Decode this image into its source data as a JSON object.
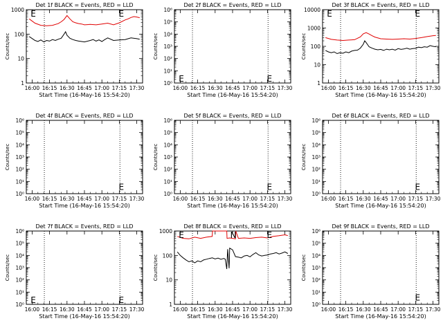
{
  "background": "#ffffff",
  "colors": {
    "events": "#000000",
    "lld": "#e00000",
    "axes": "#000000"
  },
  "shared": {
    "x_ticks": [
      "16:00",
      "16:15",
      "16:30",
      "16:45",
      "17:00",
      "17:15",
      "17:30"
    ],
    "x_label": "Start Time (16-May-16 15:54:20)",
    "y_label": "Counts/sec",
    "marker": "E"
  },
  "chart_data": [
    {
      "type": "line",
      "title": "Det 1f BLACK = Events, RED = LLD",
      "scale": "log",
      "ylim": [
        1,
        1000
      ],
      "y_ticks": [
        "1",
        "10",
        "100",
        "1000"
      ],
      "x_ticks": [
        "16:00",
        "16:15",
        "16:30",
        "16:45",
        "17:00",
        "17:15",
        "17:30"
      ],
      "xlim_minutes": [
        -2,
        38
      ],
      "xlabel": "Start Time (16-May-16 15:54:20)",
      "ylabel": "Counts/sec",
      "vlines_minutes": [
        4.2,
        30.2
      ],
      "markers": [
        {
          "text": "E",
          "x": -0.5,
          "y": 900
        },
        {
          "text": "E",
          "x": 29.8,
          "y": 900
        }
      ],
      "series": [
        {
          "name": "LLD",
          "color": "#e00000",
          "x": [
            -1,
            1,
            3,
            5,
            7,
            9,
            10,
            11,
            12,
            13,
            14,
            15,
            16,
            17,
            18,
            20,
            22,
            24,
            26,
            28,
            30,
            32,
            33,
            34,
            35,
            36,
            37
          ],
          "y": [
            420,
            280,
            230,
            220,
            230,
            270,
            320,
            400,
            580,
            420,
            320,
            290,
            270,
            260,
            240,
            250,
            240,
            260,
            280,
            240,
            290,
            380,
            420,
            480,
            520,
            500,
            470
          ]
        },
        {
          "name": "Events",
          "color": "#000000",
          "x": [
            -1,
            1,
            2,
            3,
            4,
            5,
            6,
            7,
            8,
            9,
            10,
            11,
            11.5,
            12,
            13,
            14,
            15,
            16,
            17,
            18,
            20,
            21,
            22,
            23,
            24,
            25,
            26,
            28,
            30,
            32,
            34,
            36,
            37
          ],
          "y": [
            80,
            55,
            50,
            58,
            48,
            55,
            52,
            60,
            55,
            62,
            68,
            100,
            125,
            90,
            68,
            60,
            55,
            52,
            50,
            48,
            55,
            60,
            52,
            58,
            50,
            60,
            70,
            55,
            58,
            60,
            70,
            65,
            62
          ]
        }
      ]
    },
    {
      "type": "line",
      "title": "Det 2f BLACK = Events, RED = LLD",
      "scale": "log",
      "ylim": [
        1,
        1000000
      ],
      "y_ticks": [
        "10⁰",
        "10¹",
        "10²",
        "10³",
        "10⁴",
        "10⁵",
        "10⁶"
      ],
      "x_ticks": [
        "16:00",
        "16:15",
        "16:30",
        "16:45",
        "17:00",
        "17:15",
        "17:30"
      ],
      "xlim_minutes": [
        -2,
        38
      ],
      "xlabel": "Start Time (16-May-16 15:54:20)",
      "ylabel": "Counts/sec",
      "vlines_minutes": [
        4.2,
        30.2
      ],
      "markers": [
        {
          "text": "E",
          "x": -0.5,
          "y": 1.6
        },
        {
          "text": "E",
          "x": 29.8,
          "y": 1.6
        }
      ],
      "series": []
    },
    {
      "type": "line",
      "title": "Det 3f BLACK = Events, RED = LLD",
      "scale": "log",
      "ylim": [
        1,
        10000
      ],
      "y_ticks": [
        "1",
        "10",
        "100",
        "1000",
        "10000"
      ],
      "x_ticks": [
        "16:00",
        "16:15",
        "16:30",
        "16:45",
        "17:00",
        "17:15",
        "17:30"
      ],
      "xlim_minutes": [
        -2,
        38
      ],
      "xlabel": "Start Time (16-May-16 15:54:20)",
      "ylabel": "Counts/sec",
      "vlines_minutes": [
        4.2,
        30.2
      ],
      "markers": [
        {
          "text": "E",
          "x": -0.5,
          "y": 9000
        },
        {
          "text": "E",
          "x": 29.8,
          "y": 9000
        }
      ],
      "series": [
        {
          "name": "LLD",
          "color": "#e00000",
          "x": [
            -1,
            1,
            3,
            5,
            7,
            9,
            11,
            12,
            13,
            14,
            15,
            16,
            18,
            20,
            22,
            24,
            26,
            28,
            30,
            32,
            34,
            36,
            37
          ],
          "y": [
            300,
            240,
            220,
            210,
            220,
            230,
            330,
            480,
            560,
            470,
            380,
            320,
            260,
            250,
            240,
            250,
            260,
            250,
            270,
            300,
            340,
            380,
            390
          ]
        },
        {
          "name": "Events",
          "color": "#000000",
          "x": [
            -1,
            0,
            1,
            2,
            3,
            4,
            5,
            6,
            7,
            8,
            9,
            10,
            11,
            12,
            12.5,
            13,
            14,
            15,
            16,
            17,
            18,
            19,
            20,
            21,
            22,
            23,
            24,
            25,
            26,
            27,
            28,
            29,
            30,
            31,
            32,
            33,
            34,
            35,
            36,
            37
          ],
          "y": [
            60,
            50,
            45,
            50,
            40,
            45,
            42,
            50,
            45,
            55,
            60,
            62,
            80,
            130,
            200,
            160,
            95,
            80,
            70,
            65,
            68,
            60,
            70,
            65,
            70,
            62,
            75,
            68,
            72,
            80,
            70,
            75,
            78,
            90,
            85,
            95,
            90,
            110,
            100,
            95
          ]
        }
      ]
    },
    {
      "type": "line",
      "title": "Det 4f BLACK = Events, RED = LLD",
      "scale": "log",
      "ylim": [
        1,
        1000000
      ],
      "y_ticks": [
        "10⁰",
        "10¹",
        "10²",
        "10³",
        "10⁴",
        "10⁵",
        "10⁶"
      ],
      "x_ticks": [
        "16:00",
        "16:15",
        "16:30",
        "16:45",
        "17:00",
        "17:15",
        "17:30"
      ],
      "xlim_minutes": [
        -2,
        38
      ],
      "xlabel": "Start Time (16-May-16 15:54:20)",
      "ylabel": "Counts/sec",
      "vlines_minutes": [
        4.2,
        30.2
      ],
      "markers": [
        {
          "text": "E",
          "x": 29.8,
          "y": 4
        }
      ],
      "series": []
    },
    {
      "type": "line",
      "title": "Det 5f BLACK = Events, RED = LLD",
      "scale": "log",
      "ylim": [
        1,
        1000000
      ],
      "y_ticks": [
        "10⁰",
        "10¹",
        "10²",
        "10³",
        "10⁴",
        "10⁵",
        "10⁶"
      ],
      "x_ticks": [
        "16:00",
        "16:15",
        "16:30",
        "16:45",
        "17:00",
        "17:15",
        "17:30"
      ],
      "xlim_minutes": [
        -2,
        38
      ],
      "xlabel": "Start Time (16-May-16 15:54:20)",
      "ylabel": "Counts/sec",
      "vlines_minutes": [
        4.2,
        30.2
      ],
      "markers": [
        {
          "text": "E",
          "x": 29.8,
          "y": 4
        }
      ],
      "series": []
    },
    {
      "type": "line",
      "title": "Det 6f BLACK = Events, RED = LLD",
      "scale": "log",
      "ylim": [
        1,
        1000000
      ],
      "y_ticks": [
        "10⁰",
        "10¹",
        "10²",
        "10³",
        "10⁴",
        "10⁵",
        "10⁶"
      ],
      "x_ticks": [
        "16:00",
        "16:15",
        "16:30",
        "16:45",
        "17:00",
        "17:15",
        "17:30"
      ],
      "xlim_minutes": [
        -2,
        38
      ],
      "xlabel": "Start Time (16-May-16 15:54:20)",
      "ylabel": "Counts/sec",
      "vlines_minutes": [
        4.2,
        30.2
      ],
      "markers": [
        {
          "text": "E",
          "x": 29.8,
          "y": 4
        }
      ],
      "series": []
    },
    {
      "type": "line",
      "title": "Det 7f BLACK = Events, RED = LLD",
      "scale": "log",
      "ylim": [
        1,
        1000000
      ],
      "y_ticks": [
        "10⁰",
        "10¹",
        "10²",
        "10³",
        "10⁴",
        "10⁵",
        "10⁶"
      ],
      "x_ticks": [
        "16:00",
        "16:15",
        "16:30",
        "16:45",
        "17:00",
        "17:15",
        "17:30"
      ],
      "xlim_minutes": [
        -2,
        38
      ],
      "xlabel": "Start Time (16-May-16 15:54:20)",
      "ylabel": "Counts/sec",
      "vlines_minutes": [
        4.2,
        30.2
      ],
      "markers": [
        {
          "text": "E",
          "x": -0.5,
          "y": 1.6
        },
        {
          "text": "E",
          "x": 29.8,
          "y": 1.6
        }
      ],
      "series": []
    },
    {
      "type": "line",
      "title": "Det 8f BLACK = Events, RED = LLD",
      "scale": "log",
      "ylim": [
        1,
        1000
      ],
      "y_ticks": [
        "1",
        "10",
        "100",
        "1000"
      ],
      "x_ticks": [
        "16:00",
        "16:15",
        "16:30",
        "16:45",
        "17:00",
        "17:15",
        "17:30"
      ],
      "xlim_minutes": [
        -2,
        38
      ],
      "xlabel": "Start Time (16-May-16 15:54:20)",
      "ylabel": "Counts/sec",
      "vlines_minutes": [
        4.2,
        30.2
      ],
      "markers": [
        {
          "text": "E",
          "x": -0.5,
          "y": 900
        },
        {
          "text": "E",
          "x": 29.8,
          "y": 900
        },
        {
          "text": "N",
          "x": 17.2,
          "y": 900
        }
      ],
      "series": [
        {
          "name": "LLD",
          "color": "#e00000",
          "x": [
            -1,
            1,
            3,
            5,
            7,
            9,
            11,
            11.1,
            16,
            16.1,
            17,
            18,
            19,
            19.1,
            20,
            22,
            24,
            26,
            28,
            30,
            32,
            34,
            36,
            37
          ],
          "y": [
            600,
            500,
            480,
            560,
            500,
            560,
            600,
            1000,
            1000,
            500,
            520,
            500,
            480,
            1000,
            500,
            520,
            500,
            540,
            560,
            520,
            600,
            640,
            700,
            650
          ]
        },
        {
          "name": "Events",
          "color": "#000000",
          "x": [
            -1,
            0,
            1,
            2,
            3,
            4,
            5,
            6,
            7,
            8,
            9,
            10,
            11,
            12,
            13,
            14,
            15,
            15.5,
            16,
            16.3,
            16.8,
            17,
            18,
            19,
            20,
            21,
            22,
            23,
            24,
            25,
            26,
            27,
            28,
            29,
            30,
            31,
            32,
            33,
            34,
            35,
            36,
            37
          ],
          "y": [
            140,
            100,
            80,
            65,
            55,
            60,
            50,
            60,
            55,
            65,
            70,
            75,
            80,
            72,
            78,
            70,
            75,
            70,
            28,
            180,
            30,
            200,
            170,
            90,
            85,
            80,
            95,
            100,
            88,
            110,
            130,
            105,
            95,
            100,
            105,
            115,
            120,
            130,
            115,
            125,
            140,
            120
          ]
        }
      ]
    },
    {
      "type": "line",
      "title": "Det 9f BLACK = Events, RED = LLD",
      "scale": "log",
      "ylim": [
        1,
        1000000
      ],
      "y_ticks": [
        "10⁰",
        "10¹",
        "10²",
        "10³",
        "10⁴",
        "10⁵",
        "10⁶"
      ],
      "x_ticks": [
        "16:00",
        "16:15",
        "16:30",
        "16:45",
        "17:00",
        "17:15",
        "17:30"
      ],
      "xlim_minutes": [
        -2,
        38
      ],
      "xlabel": "Start Time (16-May-16 15:54:20)",
      "ylabel": "Counts/sec",
      "vlines_minutes": [
        4.2,
        30.2
      ],
      "markers": [
        {
          "text": "E",
          "x": 29.8,
          "y": 4
        }
      ],
      "series": []
    }
  ]
}
